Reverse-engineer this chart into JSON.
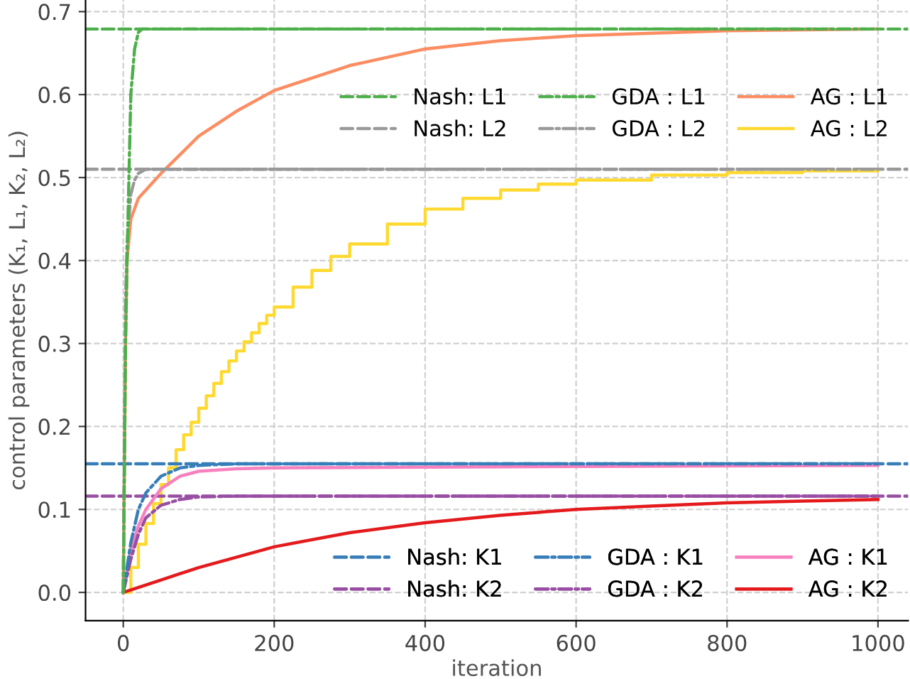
{
  "chart_data": {
    "type": "line",
    "xlabel": "iteration",
    "ylabel": "control parameters (K₁, L₁, K₂, L₂)",
    "xlim": [
      -50,
      1040
    ],
    "ylim": [
      -0.034,
      0.714
    ],
    "xticks": [
      0,
      200,
      400,
      600,
      800,
      1000
    ],
    "yticks": [
      {
        "value": 0,
        "label": "0.0"
      },
      0.1,
      0.2,
      0.3,
      0.4,
      0.5,
      0.6,
      0.7
    ],
    "grid": true,
    "legend": "right",
    "marker": "none",
    "series": [
      {
        "name": "Nash: L1",
        "color": "#4daf4a",
        "line_style": "dashed",
        "x": [
          -50,
          1040
        ],
        "values": [
          0.679,
          0.679
        ]
      },
      {
        "name": "Nash: L2",
        "color": "#999999",
        "line_style": "dashed",
        "x": [
          -50,
          1040
        ],
        "values": [
          0.51,
          0.51
        ]
      },
      {
        "name": "GDA : L1",
        "color": "#4daf4a",
        "line_style": "dashdot",
        "x": [
          0,
          3,
          5,
          8,
          10,
          15,
          20,
          25,
          50,
          1000
        ],
        "values": [
          0.0,
          0.3,
          0.4,
          0.52,
          0.6,
          0.655,
          0.675,
          0.679,
          0.679,
          0.679
        ]
      },
      {
        "name": "GDA : L2",
        "color": "#999999",
        "line_style": "dashdot",
        "x": [
          0,
          3,
          5,
          10,
          15,
          20,
          30,
          50,
          1000
        ],
        "values": [
          0.0,
          0.35,
          0.42,
          0.48,
          0.497,
          0.505,
          0.51,
          0.51,
          0.51
        ]
      },
      {
        "name": "AG : L1",
        "color": "#fc8d62",
        "line_style": "solid",
        "x": [
          0,
          3,
          5,
          10,
          20,
          50,
          100,
          150,
          200,
          300,
          400,
          500,
          600,
          800,
          1000
        ],
        "values": [
          0.0,
          0.3,
          0.4,
          0.45,
          0.475,
          0.505,
          0.55,
          0.58,
          0.605,
          0.635,
          0.655,
          0.665,
          0.671,
          0.677,
          0.679
        ]
      },
      {
        "name": "AG : L2",
        "color": "#ffd92f",
        "line_style": "solid",
        "type": "step",
        "x": [
          0,
          10,
          20,
          30,
          40,
          50,
          60,
          70,
          80,
          90,
          100,
          110,
          120,
          130,
          140,
          150,
          160,
          170,
          180,
          190,
          200,
          225,
          250,
          275,
          300,
          350,
          400,
          450,
          500,
          550,
          600,
          700,
          800,
          900,
          1000
        ],
        "values": [
          0.0,
          0.03,
          0.058,
          0.083,
          0.107,
          0.13,
          0.15,
          0.172,
          0.19,
          0.205,
          0.222,
          0.237,
          0.252,
          0.266,
          0.279,
          0.291,
          0.302,
          0.313,
          0.324,
          0.334,
          0.344,
          0.368,
          0.388,
          0.405,
          0.42,
          0.444,
          0.462,
          0.475,
          0.485,
          0.492,
          0.497,
          0.503,
          0.506,
          0.508,
          0.509
        ]
      },
      {
        "name": "Nash: K1",
        "color": "#377eb8",
        "line_style": "dashed",
        "x": [
          -50,
          1040
        ],
        "values": [
          0.155,
          0.155
        ]
      },
      {
        "name": "Nash: K2",
        "color": "#984ea3",
        "line_style": "dashed",
        "x": [
          -50,
          1040
        ],
        "values": [
          0.116,
          0.116
        ]
      },
      {
        "name": "GDA : K1",
        "color": "#377eb8",
        "line_style": "dashdot",
        "x": [
          0,
          10,
          20,
          30,
          50,
          75,
          100,
          150,
          1000
        ],
        "values": [
          0.0,
          0.06,
          0.1,
          0.12,
          0.14,
          0.15,
          0.153,
          0.155,
          0.155
        ]
      },
      {
        "name": "GDA : K2",
        "color": "#984ea3",
        "line_style": "dashdot",
        "x": [
          0,
          10,
          20,
          30,
          50,
          75,
          100,
          150,
          1000
        ],
        "values": [
          0.0,
          0.04,
          0.07,
          0.09,
          0.105,
          0.112,
          0.115,
          0.116,
          0.116
        ]
      },
      {
        "name": "AG : K1",
        "color": "#f781bf",
        "line_style": "solid",
        "x": [
          0,
          10,
          20,
          30,
          50,
          75,
          100,
          150,
          200,
          400,
          1000
        ],
        "values": [
          0.0,
          0.05,
          0.08,
          0.1,
          0.125,
          0.14,
          0.146,
          0.149,
          0.15,
          0.151,
          0.153
        ]
      },
      {
        "name": "AG : K2",
        "color": "#e41a1c",
        "line_style": "solid",
        "x": [
          0,
          10,
          50,
          100,
          200,
          300,
          400,
          500,
          600,
          700,
          800,
          900,
          1000
        ],
        "values": [
          0.0,
          0.003,
          0.015,
          0.03,
          0.055,
          0.072,
          0.084,
          0.093,
          0.1,
          0.104,
          0.108,
          0.11,
          0.112
        ]
      }
    ]
  }
}
